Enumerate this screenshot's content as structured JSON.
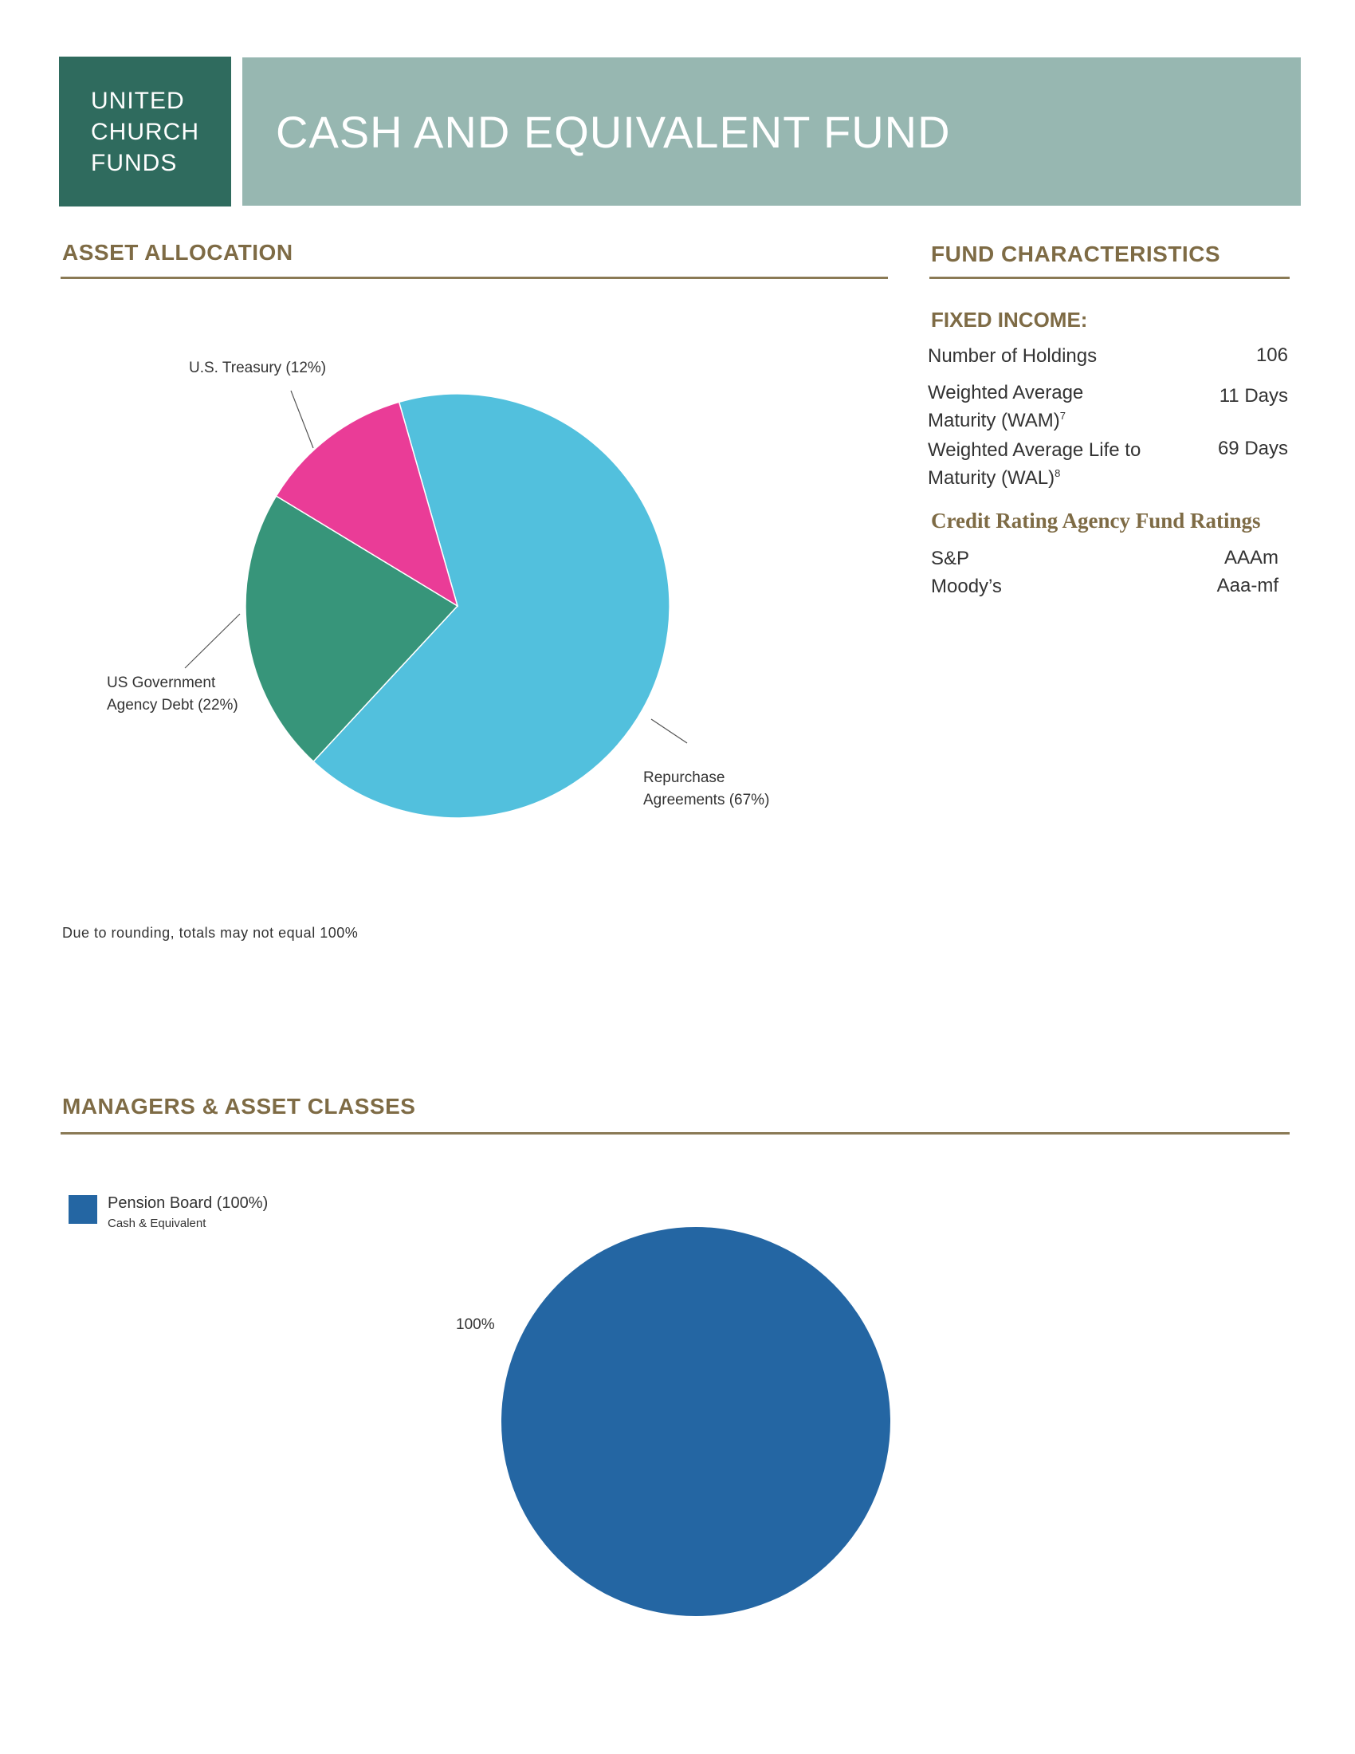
{
  "header": {
    "logo_lines": [
      "UNITED",
      "CHURCH",
      "FUNDS"
    ],
    "title": "CASH AND EQUIVALENT FUND"
  },
  "asset_allocation": {
    "heading": "ASSET ALLOCATION",
    "labels": {
      "treasury": "U.S. Treasury (12%)",
      "agency_line1": "US Government",
      "agency_line2": "Agency Debt (22%)",
      "repo_line1": "Repurchase",
      "repo_line2": "Agreements (67%)"
    },
    "note": "Due to rounding, totals may not equal 100%"
  },
  "fund_characteristics": {
    "heading": "FUND CHARACTERISTICS",
    "fixed_income_heading": "FIXED INCOME:",
    "rows": [
      {
        "label_line1": "Number of Holdings",
        "label_line2": "",
        "sup": "",
        "value": "106"
      },
      {
        "label_line1": "Weighted Average",
        "label_line2": "Maturity (WAM)",
        "sup": "7",
        "value": "11 Days"
      },
      {
        "label_line1": "Weighted Average Life to",
        "label_line2": "Maturity (WAL)",
        "sup": "8",
        "value": "69 Days"
      }
    ],
    "ratings_heading": "Credit Rating Agency Fund Ratings",
    "ratings": [
      {
        "agency": "S&P",
        "rating": "AAAm"
      },
      {
        "agency": "Moody’s",
        "rating": "Aaa-mf"
      }
    ]
  },
  "managers": {
    "heading": "MANAGERS & ASSET CLASSES",
    "legend_name": "Pension Board (100%)",
    "legend_sub": "Cash & Equivalent",
    "pie_label": "100%"
  },
  "chart_data": [
    {
      "type": "pie",
      "title": "",
      "categories": [
        "Repurchase Agreements",
        "US Government Agency Debt",
        "U.S. Treasury"
      ],
      "values": [
        67,
        22,
        12
      ],
      "colors": [
        "#52c0dd",
        "#37957a",
        "#ea3c97"
      ]
    },
    {
      "type": "pie",
      "title": "",
      "categories": [
        "Pension Board"
      ],
      "values": [
        100
      ],
      "colors": [
        "#2466a3"
      ]
    }
  ]
}
